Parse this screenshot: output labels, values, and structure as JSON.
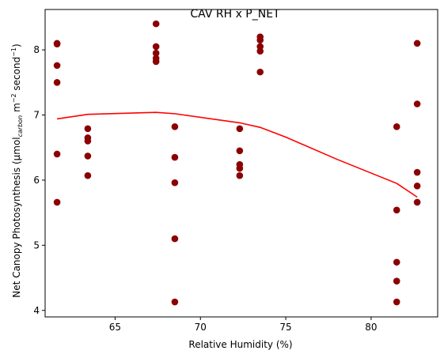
{
  "chart_data": {
    "type": "scatter",
    "title": "CAV RH x P_NET",
    "xlabel": "Relative Humidity (%)",
    "ylabel_parts": {
      "prefix": "Net Canopy Photosynthesis (μmol",
      "subscript": "carbon",
      "middle1": " m",
      "sup1": "−2",
      "middle2": " second",
      "sup2": "−1",
      "suffix": ")"
    },
    "xlim": [
      60.9,
      83.9
    ],
    "ylim": [
      3.9,
      8.62
    ],
    "xticks": [
      65,
      70,
      75,
      80
    ],
    "xtick_labels": [
      "65",
      "70",
      "75",
      "80"
    ],
    "yticks": [
      4,
      5,
      6,
      7,
      8
    ],
    "ytick_labels": [
      "4",
      "5",
      "6",
      "7",
      "8"
    ],
    "grid": false,
    "colors": {
      "points": "#8b0000",
      "trend": "#ff0000"
    },
    "series": [
      {
        "type": "scatter",
        "x": [
          61.6,
          61.6,
          61.6,
          61.6,
          61.6,
          61.6,
          63.4,
          63.4,
          63.4,
          63.4,
          63.4,
          67.4,
          67.4,
          67.4,
          67.4,
          67.4,
          68.5,
          68.5,
          68.5,
          68.5,
          68.5,
          72.3,
          72.3,
          72.3,
          72.3,
          72.3,
          73.5,
          73.5,
          73.5,
          73.5,
          73.5,
          81.5,
          81.5,
          81.5,
          81.5,
          81.5,
          82.7,
          82.7,
          82.7,
          82.7,
          82.7
        ],
        "y": [
          8.1,
          7.76,
          7.5,
          6.4,
          5.66,
          8.09,
          6.79,
          6.65,
          6.6,
          6.37,
          6.07,
          8.4,
          8.05,
          7.95,
          7.87,
          7.82,
          6.82,
          6.35,
          5.96,
          5.1,
          4.13,
          6.79,
          6.45,
          6.24,
          6.18,
          6.07,
          8.2,
          8.15,
          8.05,
          7.98,
          7.66,
          6.82,
          5.54,
          4.74,
          4.45,
          4.13,
          8.1,
          7.17,
          6.12,
          5.91,
          5.66
        ]
      },
      {
        "type": "line",
        "x": [
          61.6,
          63.4,
          67.4,
          68.5,
          72.3,
          73.5,
          75.0,
          78.0,
          81.5,
          82.7
        ],
        "y": [
          6.94,
          7.01,
          7.04,
          7.02,
          6.88,
          6.81,
          6.66,
          6.32,
          5.95,
          5.74
        ]
      }
    ]
  }
}
